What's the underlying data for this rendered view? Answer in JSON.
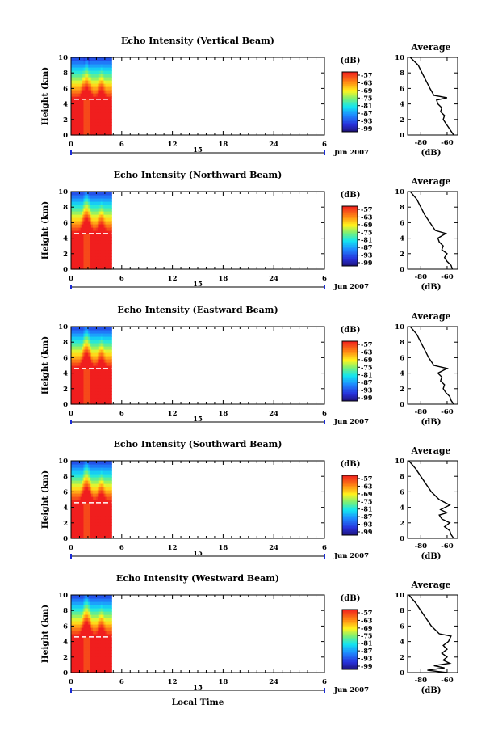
{
  "chart_data": [
    {
      "type": "heatmap",
      "title": "Echo Intensity (Vertical Beam)",
      "ylabel": "Height (km)",
      "y_ticks": [
        0,
        2,
        4,
        6,
        8,
        10
      ],
      "x_ticks": [
        "0",
        "6",
        "12",
        "18",
        "24",
        "6"
      ],
      "xlim": [
        0,
        30
      ],
      "ylim": [
        0,
        10
      ],
      "date_marker": "15",
      "date_label": "Jun 2007",
      "data_time_range": [
        0,
        4.8
      ],
      "colorbar": {
        "unit": "(dB)",
        "ticks": [
          -57,
          -63,
          -69,
          -75,
          -81,
          -87,
          -93,
          -99
        ]
      },
      "average": {
        "title": "Average",
        "xlabel": "(dB)",
        "x_ticks": [
          "-80",
          "-60"
        ],
        "y_ticks": [
          0,
          2,
          4,
          6,
          8,
          10
        ],
        "profile": [
          [
            0,
            -55
          ],
          [
            0.5,
            -57
          ],
          [
            1,
            -59
          ],
          [
            1.5,
            -61
          ],
          [
            2,
            -63
          ],
          [
            2.5,
            -62
          ],
          [
            3,
            -65
          ],
          [
            3.5,
            -64
          ],
          [
            4,
            -67
          ],
          [
            4.5,
            -68
          ],
          [
            4.8,
            -60
          ],
          [
            5.1,
            -70
          ],
          [
            6,
            -73
          ],
          [
            7,
            -76
          ],
          [
            8,
            -79
          ],
          [
            9,
            -82
          ],
          [
            9.5,
            -85
          ],
          [
            10,
            -88
          ]
        ]
      }
    },
    {
      "type": "heatmap",
      "title": "Echo Intensity (Northward Beam)",
      "ylabel": "Height (km)",
      "y_ticks": [
        0,
        2,
        4,
        6,
        8,
        10
      ],
      "x_ticks": [
        "0",
        "6",
        "12",
        "18",
        "24",
        "6"
      ],
      "xlim": [
        0,
        30
      ],
      "ylim": [
        0,
        10
      ],
      "date_marker": "15",
      "date_label": "Jun 2007",
      "data_time_range": [
        0,
        4.8
      ],
      "colorbar": {
        "unit": "(dB)",
        "ticks": [
          -57,
          -63,
          -69,
          -75,
          -81,
          -87,
          -93,
          -99
        ]
      },
      "average": {
        "title": "Average",
        "xlabel": "(dB)",
        "x_ticks": [
          "-80",
          "-60"
        ],
        "y_ticks": [
          0,
          2,
          4,
          6,
          8,
          10
        ],
        "profile": [
          [
            0,
            -56
          ],
          [
            0.5,
            -57
          ],
          [
            1,
            -60
          ],
          [
            1.5,
            -62
          ],
          [
            2,
            -60
          ],
          [
            2.5,
            -64
          ],
          [
            3,
            -63
          ],
          [
            3.5,
            -66
          ],
          [
            4,
            -67
          ],
          [
            4.6,
            -61
          ],
          [
            5,
            -69
          ],
          [
            6,
            -73
          ],
          [
            7,
            -77
          ],
          [
            8,
            -80
          ],
          [
            9,
            -83
          ],
          [
            10,
            -88
          ]
        ]
      }
    },
    {
      "type": "heatmap",
      "title": "Echo Intensity (Eastward Beam)",
      "ylabel": "Height (km)",
      "y_ticks": [
        0,
        2,
        4,
        6,
        8,
        10
      ],
      "x_ticks": [
        "0",
        "6",
        "12",
        "18",
        "24",
        "6"
      ],
      "xlim": [
        0,
        30
      ],
      "ylim": [
        0,
        10
      ],
      "date_marker": "15",
      "date_label": "Jun 2007",
      "data_time_range": [
        0,
        4.8
      ],
      "colorbar": {
        "unit": "(dB)",
        "ticks": [
          -57,
          -63,
          -69,
          -75,
          -81,
          -87,
          -93,
          -99
        ]
      },
      "average": {
        "title": "Average",
        "xlabel": "(dB)",
        "x_ticks": [
          "-80",
          "-60"
        ],
        "y_ticks": [
          0,
          2,
          4,
          6,
          8,
          10
        ],
        "profile": [
          [
            0,
            -55
          ],
          [
            0.5,
            -57
          ],
          [
            1,
            -58
          ],
          [
            1.5,
            -61
          ],
          [
            2,
            -63
          ],
          [
            2.5,
            -62
          ],
          [
            3,
            -65
          ],
          [
            3.5,
            -64
          ],
          [
            4,
            -67
          ],
          [
            4.6,
            -60
          ],
          [
            5,
            -70
          ],
          [
            6,
            -74
          ],
          [
            7,
            -77
          ],
          [
            8,
            -80
          ],
          [
            9,
            -83
          ],
          [
            10,
            -88
          ]
        ]
      }
    },
    {
      "type": "heatmap",
      "title": "Echo Intensity (Southward Beam)",
      "ylabel": "Height (km)",
      "y_ticks": [
        0,
        2,
        4,
        6,
        8,
        10
      ],
      "x_ticks": [
        "0",
        "6",
        "12",
        "18",
        "24",
        "6"
      ],
      "xlim": [
        0,
        30
      ],
      "ylim": [
        0,
        10
      ],
      "date_marker": "15",
      "date_label": "Jun 2007",
      "data_time_range": [
        0,
        4.8
      ],
      "colorbar": {
        "unit": "(dB)",
        "ticks": [
          -57,
          -63,
          -69,
          -75,
          -81,
          -87,
          -93,
          -99
        ]
      },
      "average": {
        "title": "Average",
        "xlabel": "(dB)",
        "x_ticks": [
          "-80",
          "-60"
        ],
        "y_ticks": [
          0,
          2,
          4,
          6,
          8,
          10
        ],
        "profile": [
          [
            0,
            -55
          ],
          [
            0.5,
            -57
          ],
          [
            1,
            -58
          ],
          [
            1.5,
            -62
          ],
          [
            2,
            -58
          ],
          [
            2.5,
            -64
          ],
          [
            3,
            -66
          ],
          [
            3.3,
            -60
          ],
          [
            3.7,
            -65
          ],
          [
            4.3,
            -58
          ],
          [
            5,
            -66
          ],
          [
            6,
            -72
          ],
          [
            7,
            -76
          ],
          [
            8,
            -80
          ],
          [
            9,
            -84
          ],
          [
            10,
            -89
          ]
        ]
      }
    },
    {
      "type": "heatmap",
      "title": "Echo Intensity (Westward Beam)",
      "ylabel": "Height (km)",
      "xlabel": "Local Time",
      "y_ticks": [
        0,
        2,
        4,
        6,
        8,
        10
      ],
      "x_ticks": [
        "0",
        "6",
        "12",
        "18",
        "24",
        "6"
      ],
      "xlim": [
        0,
        30
      ],
      "ylim": [
        0,
        10
      ],
      "date_marker": "15",
      "date_label": "Jun 2007",
      "data_time_range": [
        0,
        4.8
      ],
      "colorbar": {
        "unit": "(dB)",
        "ticks": [
          -57,
          -63,
          -69,
          -75,
          -81,
          -87,
          -93,
          -99
        ]
      },
      "average": {
        "title": "Average",
        "xlabel": "(dB)",
        "x_ticks": [
          "-80",
          "-60"
        ],
        "y_ticks": [
          0,
          2,
          4,
          6,
          8,
          10
        ],
        "profile": [
          [
            0,
            -60
          ],
          [
            0.3,
            -75
          ],
          [
            0.6,
            -62
          ],
          [
            0.9,
            -70
          ],
          [
            1.2,
            -58
          ],
          [
            1.6,
            -63
          ],
          [
            2,
            -60
          ],
          [
            2.5,
            -64
          ],
          [
            3,
            -60
          ],
          [
            3.5,
            -63
          ],
          [
            4,
            -59
          ],
          [
            4.7,
            -57
          ],
          [
            5,
            -66
          ],
          [
            6,
            -72
          ],
          [
            7,
            -76
          ],
          [
            8,
            -80
          ],
          [
            9,
            -84
          ],
          [
            10,
            -89
          ]
        ]
      }
    }
  ]
}
